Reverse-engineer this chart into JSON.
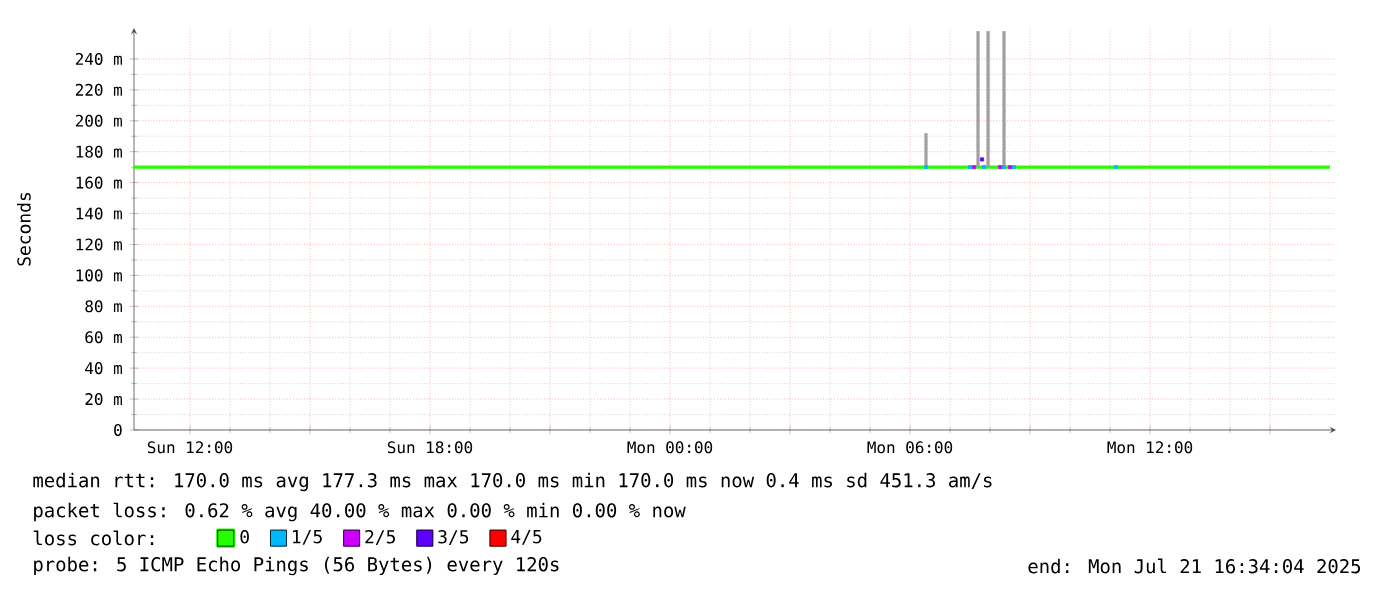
{
  "chart_data": {
    "type": "line",
    "ylabel": "Seconds",
    "legend_title": "loss color:",
    "legend": "bottom",
    "grid": true,
    "xlim": [
      "2025-07-20T10:36",
      "2025-07-21T16:39"
    ],
    "xticks": [
      {
        "value": "2025-07-20T12:00",
        "label": "Sun 12:00"
      },
      {
        "value": "2025-07-20T15:00",
        "label": null
      },
      {
        "value": "2025-07-20T18:00",
        "label": "Sun 18:00"
      },
      {
        "value": "2025-07-20T21:00",
        "label": null
      },
      {
        "value": "2025-07-21T00:00",
        "label": "Mon 00:00"
      },
      {
        "value": "2025-07-21T03:00",
        "label": null
      },
      {
        "value": "2025-07-21T06:00",
        "label": "Mon 06:00"
      },
      {
        "value": "2025-07-21T09:00",
        "label": null
      },
      {
        "value": "2025-07-21T12:00",
        "label": "Mon 12:00"
      },
      {
        "value": "2025-07-21T15:00",
        "label": null
      }
    ],
    "ylim": [
      0,
      260
    ],
    "yticks": [
      0,
      {
        "value": 20,
        "label": "20 m"
      },
      {
        "value": 40,
        "label": "40 m"
      },
      {
        "value": 60,
        "label": "60 m"
      },
      {
        "value": 80,
        "label": "80 m"
      },
      {
        "value": 100,
        "label": "100 m"
      },
      {
        "value": 120,
        "label": "120 m"
      },
      {
        "value": 140,
        "label": "140 m"
      },
      {
        "value": 160,
        "label": "160 m"
      },
      {
        "value": 180,
        "label": "180 m"
      },
      {
        "value": 200,
        "label": "200 m"
      },
      {
        "value": 220,
        "label": "220 m"
      },
      {
        "value": 240,
        "label": "240 m"
      }
    ],
    "series": [
      {
        "name": "0",
        "color": "#26ff00",
        "x": [
          "2025-07-20T10:36",
          "2025-07-21T16:30"
        ],
        "values": [
          170,
          170
        ]
      },
      {
        "type": "bar",
        "color": "#a0a0a0",
        "x": [
          "2025-07-21T06:24",
          "2025-07-21T07:42",
          "2025-07-21T07:57",
          "2025-07-21T08:21"
        ],
        "base": [
          170,
          170,
          170,
          170
        ],
        "values": [
          22,
          88,
          88,
          88
        ]
      },
      {
        "name": "1/5",
        "type": "scatter",
        "marker": "square",
        "color": "#00b8ff",
        "x": [
          "2025-07-21T06:24",
          "2025-07-21T07:30",
          "2025-07-21T07:51",
          "2025-07-21T08:21",
          "2025-07-21T08:36",
          "2025-07-21T11:09"
        ],
        "values": [
          170,
          170,
          170,
          170,
          170,
          170
        ]
      },
      {
        "name": "2/5",
        "type": "scatter",
        "marker": "square",
        "color": "#cc00ff",
        "x": [
          "2025-07-21T07:36",
          "2025-07-21T08:15",
          "2025-07-21T08:30"
        ],
        "values": [
          170,
          170,
          170
        ]
      },
      {
        "name": "3/5",
        "type": "scatter",
        "marker": "square",
        "color": "#5e00ff",
        "x": [
          "2025-07-21T07:48"
        ],
        "values": [
          175
        ]
      },
      {
        "name": "4/5",
        "type": "scatter",
        "marker": "square",
        "color": "#ff0000"
      }
    ],
    "annotations": [
      "median rtt: 170.0 ms avg 177.3 ms max 170.0 ms min 170.0 ms now 0.4 ms sd 451.3 am/s",
      "packet loss: 0.62 % avg 40.00 % max 0.00 % min 0.00 % now",
      "probe: 5 ICMP Echo Pings (56 Bytes) every 120s",
      "end: Mon Jul 21 16:34:04 2025"
    ]
  }
}
